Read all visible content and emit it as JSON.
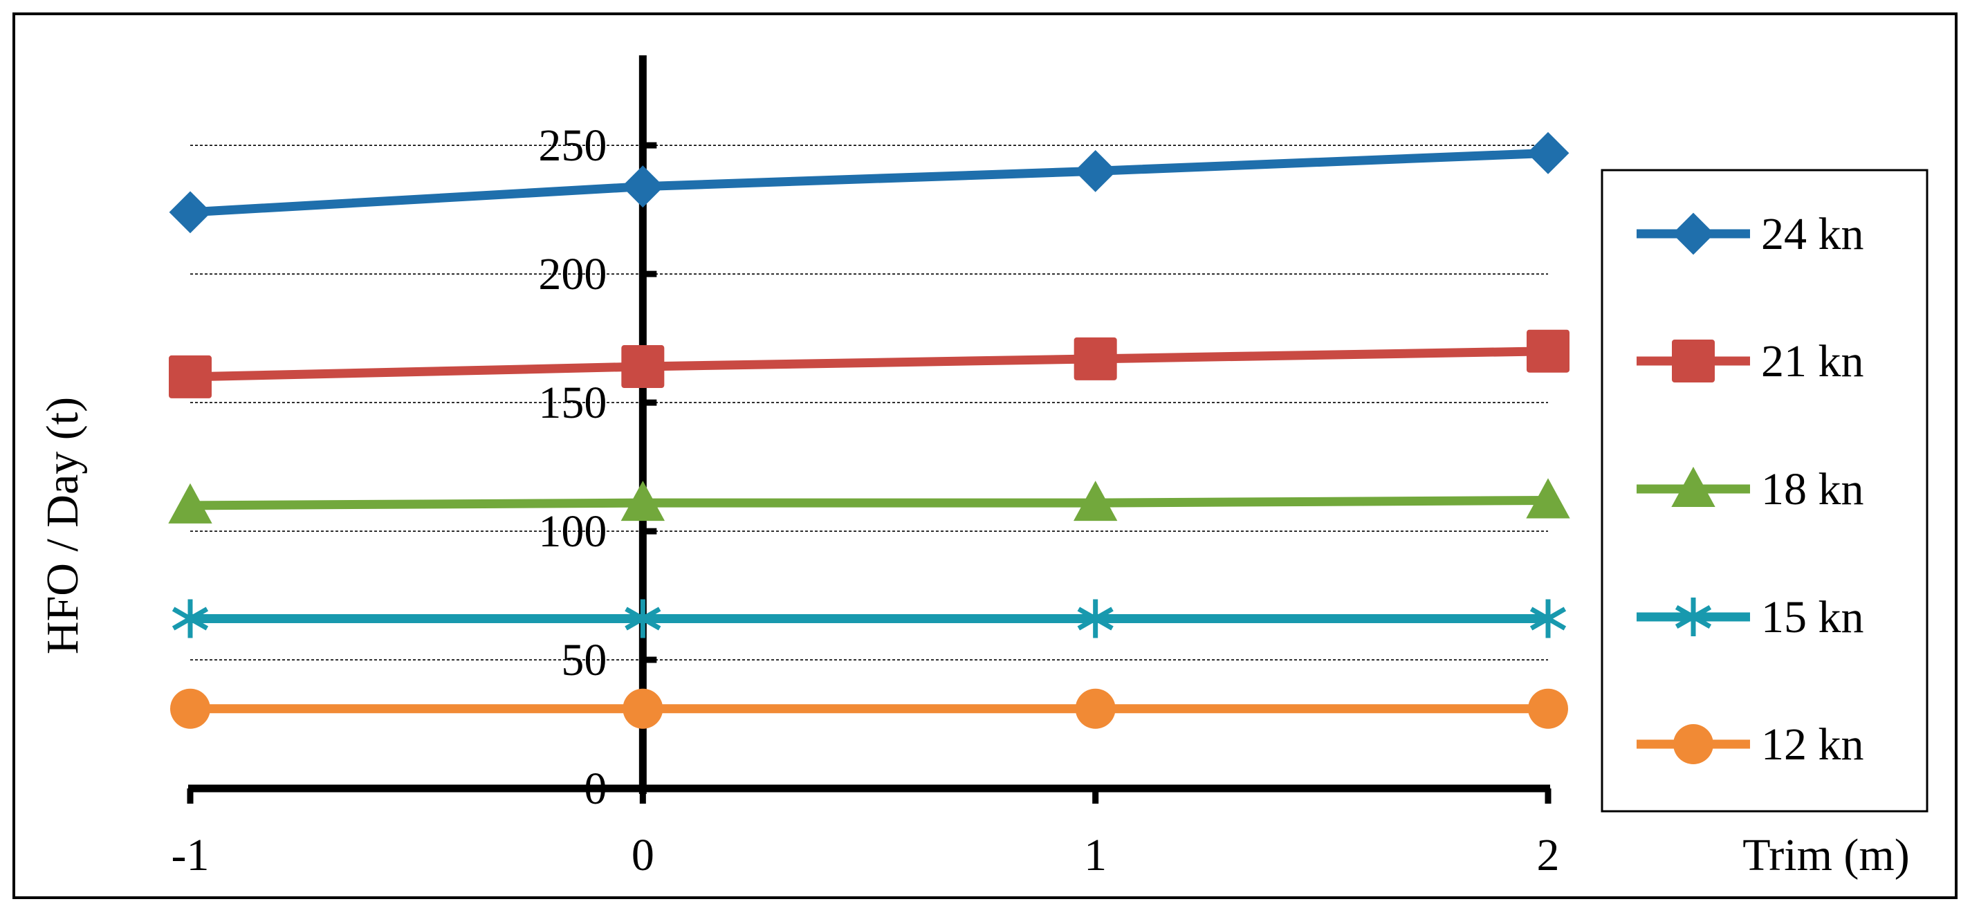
{
  "chart_data": {
    "type": "line",
    "title": "",
    "xlabel": "Trim (m)",
    "ylabel": "HFO / Day (t)",
    "x": [
      -1,
      0,
      1,
      2
    ],
    "x_tick_labels": [
      "-1",
      "0",
      "1",
      "2"
    ],
    "xlim": [
      -1,
      2
    ],
    "ylim": [
      0,
      285
    ],
    "y_ticks": [
      0,
      50,
      100,
      150,
      200,
      250
    ],
    "y_tick_labels": [
      "0",
      "50",
      "100",
      "150",
      "200",
      "250"
    ],
    "grid": "horizontal dashed",
    "legend_position": "right",
    "series": [
      {
        "name": "24 kn",
        "values": [
          224,
          234,
          240,
          247
        ],
        "color": "#1f6fac",
        "marker": "diamond"
      },
      {
        "name": "21 kn",
        "values": [
          160,
          164,
          167,
          170
        ],
        "color": "#c94a43",
        "marker": "square"
      },
      {
        "name": "18 kn",
        "values": [
          110,
          111,
          111,
          112
        ],
        "color": "#72a83c",
        "marker": "triangle"
      },
      {
        "name": "15 kn",
        "values": [
          66,
          66,
          66,
          66
        ],
        "color": "#1899ae",
        "marker": "asterisk"
      },
      {
        "name": "12 kn",
        "values": [
          31,
          31,
          31,
          31
        ],
        "color": "#f18a35",
        "marker": "circle"
      }
    ]
  }
}
